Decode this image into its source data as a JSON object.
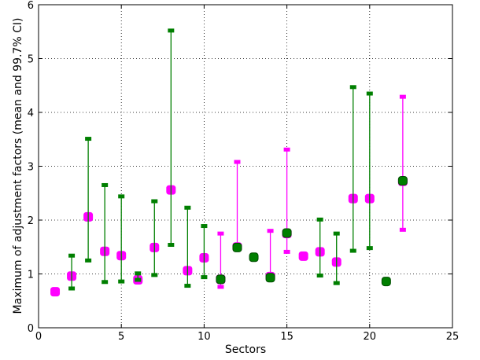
{
  "chart_data": {
    "type": "scatter",
    "title": "",
    "xlabel": "Sectors",
    "ylabel": "Maximum of adjustment factors (mean and 99.7% CI)",
    "xlim": [
      0,
      25
    ],
    "ylim": [
      0,
      6
    ],
    "xticks": [
      "0",
      "5",
      "10",
      "15",
      "20",
      "25"
    ],
    "yticks": [
      "0",
      "1",
      "2",
      "3",
      "4",
      "5",
      "6"
    ],
    "grid": true,
    "grid_style": "dotted",
    "legend": "none",
    "colors": {
      "magenta": "#ff00ff",
      "green": "#007f00",
      "grid": "#000000"
    },
    "series": [
      {
        "color": "magenta",
        "marker": "square",
        "points": [
          {
            "x": 1,
            "mean": 0.67
          },
          {
            "x": 2,
            "mean": 0.96
          },
          {
            "x": 3,
            "mean": 2.06
          },
          {
            "x": 4,
            "mean": 1.42
          },
          {
            "x": 5,
            "mean": 1.34
          },
          {
            "x": 6,
            "mean": 0.89
          },
          {
            "x": 7,
            "mean": 1.49
          },
          {
            "x": 8,
            "mean": 2.56
          },
          {
            "x": 9,
            "mean": 1.06
          },
          {
            "x": 10,
            "mean": 1.3
          },
          {
            "x": 11,
            "mean": 0.9,
            "low": 0.76,
            "high": 1.75
          },
          {
            "x": 12,
            "mean": 1.5,
            "low": 1.47,
            "high": 3.08
          },
          {
            "x": 14,
            "mean": 0.95,
            "low": 0.91,
            "high": 1.8
          },
          {
            "x": 15,
            "mean": 1.75,
            "low": 1.41,
            "high": 3.31
          },
          {
            "x": 16,
            "mean": 1.33
          },
          {
            "x": 17,
            "mean": 1.41
          },
          {
            "x": 18,
            "mean": 1.22
          },
          {
            "x": 19,
            "mean": 2.4
          },
          {
            "x": 20,
            "mean": 2.4
          },
          {
            "x": 22,
            "mean": 2.72,
            "low": 1.82,
            "high": 4.29
          }
        ]
      },
      {
        "color": "green",
        "marker": "circle",
        "points": [
          {
            "x": 2,
            "low": 0.73,
            "high": 1.34
          },
          {
            "x": 3,
            "low": 1.25,
            "high": 3.51
          },
          {
            "x": 4,
            "low": 0.85,
            "high": 2.65
          },
          {
            "x": 5,
            "low": 0.86,
            "high": 2.44
          },
          {
            "x": 6,
            "low": 0.89,
            "high": 1.01
          },
          {
            "x": 7,
            "low": 0.98,
            "high": 2.35
          },
          {
            "x": 8,
            "low": 1.54,
            "high": 5.52
          },
          {
            "x": 9,
            "low": 0.78,
            "high": 2.23
          },
          {
            "x": 10,
            "low": 0.94,
            "high": 1.89
          },
          {
            "x": 11,
            "mean": 0.9
          },
          {
            "x": 12,
            "mean": 1.49
          },
          {
            "x": 13,
            "mean": 1.31
          },
          {
            "x": 14,
            "mean": 0.93
          },
          {
            "x": 15,
            "mean": 1.76
          },
          {
            "x": 17,
            "low": 0.97,
            "high": 2.01
          },
          {
            "x": 18,
            "low": 0.83,
            "high": 1.75
          },
          {
            "x": 19,
            "low": 1.43,
            "high": 4.47
          },
          {
            "x": 20,
            "low": 1.48,
            "high": 4.35
          },
          {
            "x": 21,
            "mean": 0.86
          },
          {
            "x": 22,
            "mean": 2.73
          }
        ]
      }
    ]
  }
}
